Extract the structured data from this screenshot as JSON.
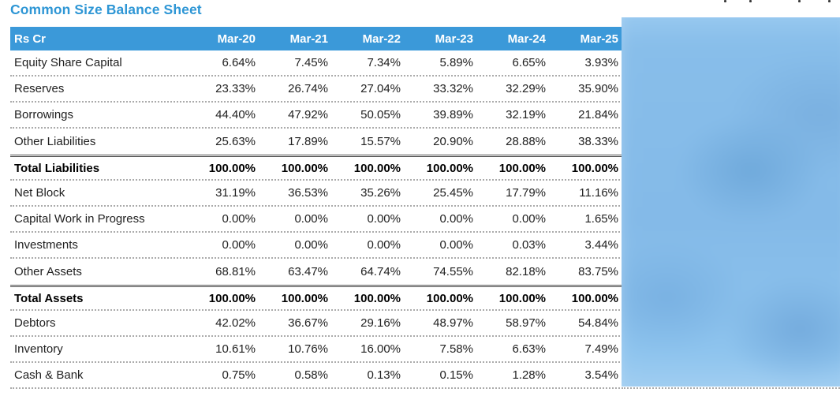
{
  "page": {
    "title": "Common Size Balance Sheet"
  },
  "colors": {
    "title_blue": "#2E96D5",
    "header_blue": "#3B99D9",
    "header_text": "#FFFFFF",
    "body_text": "#212121",
    "dotted_rule_gray": "#ABABAB",
    "total_rule_gray": "#4F4F4F",
    "redacted_region_blue": "#84BAE8"
  },
  "table": {
    "unit_label": "Rs Cr",
    "columns": [
      "Mar-20",
      "Mar-21",
      "Mar-22",
      "Mar-23",
      "Mar-24",
      "Mar-25"
    ],
    "rows": [
      {
        "label": "Equity Share Capital",
        "emphasis": false,
        "values": [
          "6.64%",
          "7.45%",
          "7.34%",
          "5.89%",
          "6.65%",
          "3.93%"
        ]
      },
      {
        "label": "Reserves",
        "emphasis": false,
        "values": [
          "23.33%",
          "26.74%",
          "27.04%",
          "33.32%",
          "32.29%",
          "35.90%"
        ]
      },
      {
        "label": "Borrowings",
        "emphasis": false,
        "values": [
          "44.40%",
          "47.92%",
          "50.05%",
          "39.89%",
          "32.19%",
          "21.84%"
        ]
      },
      {
        "label": "Other Liabilities",
        "emphasis": false,
        "values": [
          "25.63%",
          "17.89%",
          "15.57%",
          "20.90%",
          "28.88%",
          "38.33%"
        ]
      },
      {
        "label": "Total Liabilities",
        "emphasis": true,
        "values": [
          "100.00%",
          "100.00%",
          "100.00%",
          "100.00%",
          "100.00%",
          "100.00%"
        ]
      },
      {
        "label": "Net Block",
        "emphasis": false,
        "values": [
          "31.19%",
          "36.53%",
          "35.26%",
          "25.45%",
          "17.79%",
          "11.16%"
        ]
      },
      {
        "label": "Capital Work in Progress",
        "emphasis": false,
        "values": [
          "0.00%",
          "0.00%",
          "0.00%",
          "0.00%",
          "0.00%",
          "1.65%"
        ]
      },
      {
        "label": "Investments",
        "emphasis": false,
        "values": [
          "0.00%",
          "0.00%",
          "0.00%",
          "0.00%",
          "0.03%",
          "3.44%"
        ]
      },
      {
        "label": "Other Assets",
        "emphasis": false,
        "values": [
          "68.81%",
          "63.47%",
          "64.74%",
          "74.55%",
          "82.18%",
          "83.75%"
        ]
      },
      {
        "label": "Total Assets",
        "emphasis": true,
        "values": [
          "100.00%",
          "100.00%",
          "100.00%",
          "100.00%",
          "100.00%",
          "100.00%"
        ]
      },
      {
        "label": "Debtors",
        "emphasis": false,
        "values": [
          "42.02%",
          "36.67%",
          "29.16%",
          "48.97%",
          "58.97%",
          "54.84%"
        ]
      },
      {
        "label": "Inventory",
        "emphasis": false,
        "values": [
          "10.61%",
          "10.76%",
          "16.00%",
          "7.58%",
          "6.63%",
          "7.49%"
        ]
      },
      {
        "label": "Cash & Bank",
        "emphasis": false,
        "values": [
          "0.75%",
          "0.58%",
          "0.13%",
          "0.15%",
          "1.28%",
          "3.54%"
        ]
      }
    ]
  }
}
